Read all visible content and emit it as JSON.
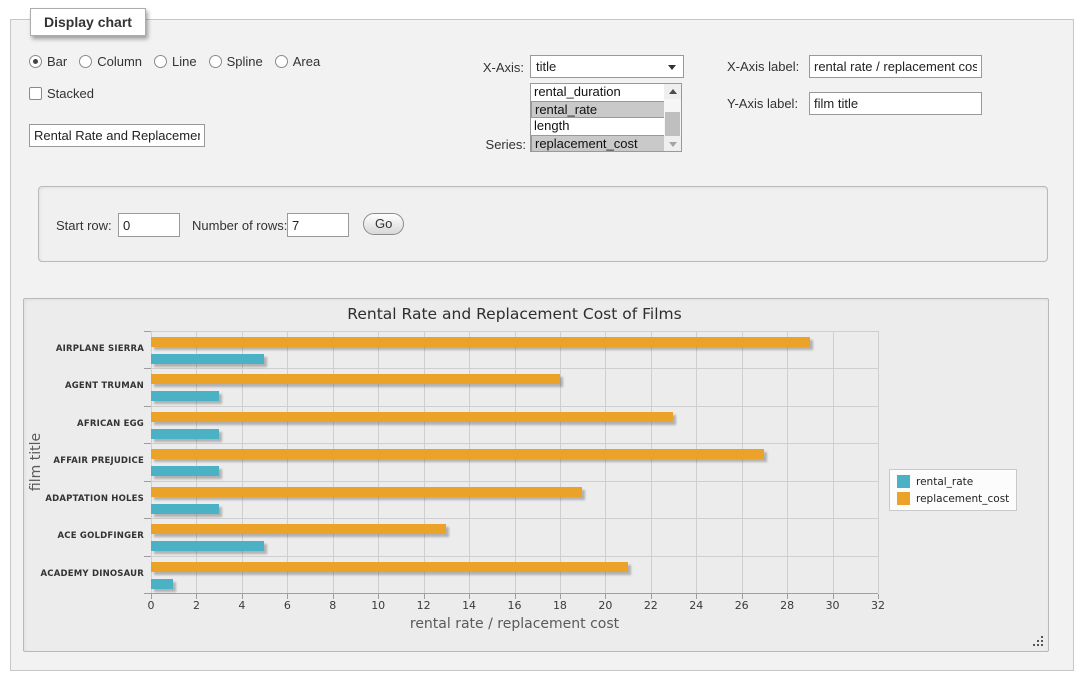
{
  "panel": {
    "legend": "Display chart"
  },
  "icons": {
    "dropdown_arrow": "▾",
    "scroll_up": "▴",
    "scroll_down": "▾",
    "resize_grip": "◢"
  },
  "form": {
    "chart_type": {
      "options": [
        "Bar",
        "Column",
        "Line",
        "Spline",
        "Area"
      ],
      "selected": "Bar"
    },
    "stacked": {
      "label": "Stacked",
      "checked": false
    },
    "title_input": {
      "value": "Rental Rate and Replacement Cost of Films"
    },
    "x_axis": {
      "label": "X-Axis:",
      "selected": "title"
    },
    "series": {
      "label": "Series:",
      "options": [
        {
          "name": "rental_duration",
          "selected": false
        },
        {
          "name": "rental_rate",
          "selected": true
        },
        {
          "name": "length",
          "selected": false
        },
        {
          "name": "replacement_cost",
          "selected": true
        }
      ]
    },
    "x_axis_label": {
      "label": "X-Axis label:",
      "value": "rental rate / replacement cost"
    },
    "y_axis_label": {
      "label": "Y-Axis label:",
      "value": "film title"
    }
  },
  "row_controls": {
    "start_row": {
      "label": "Start row:",
      "value": "0"
    },
    "num_rows": {
      "label": "Number of rows:",
      "value": "7"
    },
    "go_label": "Go"
  },
  "chart_data": {
    "type": "bar",
    "orientation": "horizontal",
    "title": "Rental Rate and Replacement Cost of Films",
    "xlabel": "rental rate / replacement cost",
    "ylabel": "film title",
    "categories": [
      "AIRPLANE SIERRA",
      "AGENT TRUMAN",
      "AFRICAN EGG",
      "AFFAIR PREJUDICE",
      "ADAPTATION HOLES",
      "ACE GOLDFINGER",
      "ACADEMY DINOSAUR"
    ],
    "series": [
      {
        "name": "rental_rate",
        "color": "#4BB2C5",
        "values": [
          4.99,
          2.99,
          2.99,
          2.99,
          2.99,
          4.99,
          0.99
        ]
      },
      {
        "name": "replacement_cost",
        "color": "#EAA228",
        "values": [
          28.99,
          17.99,
          22.99,
          26.99,
          18.99,
          12.99,
          20.99
        ]
      }
    ],
    "xlim": [
      0,
      32
    ],
    "xticks": [
      0,
      2,
      4,
      6,
      8,
      10,
      12,
      14,
      16,
      18,
      20,
      22,
      24,
      26,
      28,
      30,
      32
    ],
    "grid": true,
    "legend_position": "right"
  }
}
